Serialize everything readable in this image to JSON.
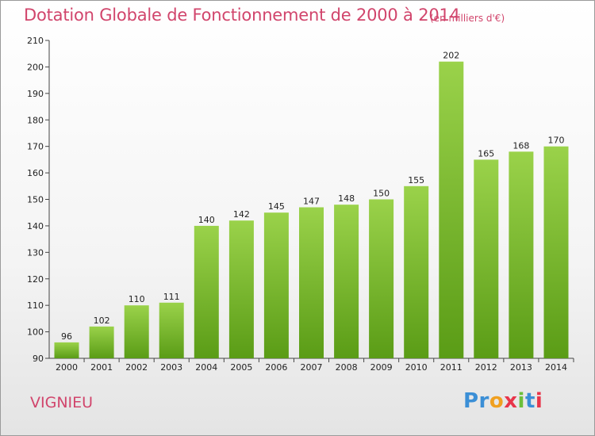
{
  "title": "Dotation Globale de Fonctionnement de 2000 à 2014",
  "unit": "(en milliers d'€)",
  "commune": "VIGNIEU",
  "logo": {
    "name": "Proxiti",
    "parts": [
      "Pr",
      "o",
      "x",
      "i",
      "t",
      "i"
    ]
  },
  "colors": {
    "title": "#d1456c",
    "bar_top": "#9ad24a",
    "bar_bottom": "#5a9c16"
  },
  "chart_data": {
    "type": "bar",
    "title": "Dotation Globale de Fonctionnement de 2000 à 2014",
    "subtitle": "(en milliers d'€)",
    "xlabel": "",
    "ylabel": "",
    "categories": [
      "2000",
      "2001",
      "2002",
      "2003",
      "2004",
      "2005",
      "2006",
      "2007",
      "2008",
      "2009",
      "2010",
      "2011",
      "2012",
      "2013",
      "2014"
    ],
    "values": [
      96,
      102,
      110,
      111,
      140,
      142,
      145,
      147,
      148,
      150,
      155,
      202,
      165,
      168,
      170
    ],
    "ylim": [
      90,
      210
    ],
    "yticks": [
      90,
      100,
      110,
      120,
      130,
      140,
      150,
      160,
      170,
      180,
      190,
      200,
      210
    ],
    "grid": false,
    "legend": "none"
  }
}
